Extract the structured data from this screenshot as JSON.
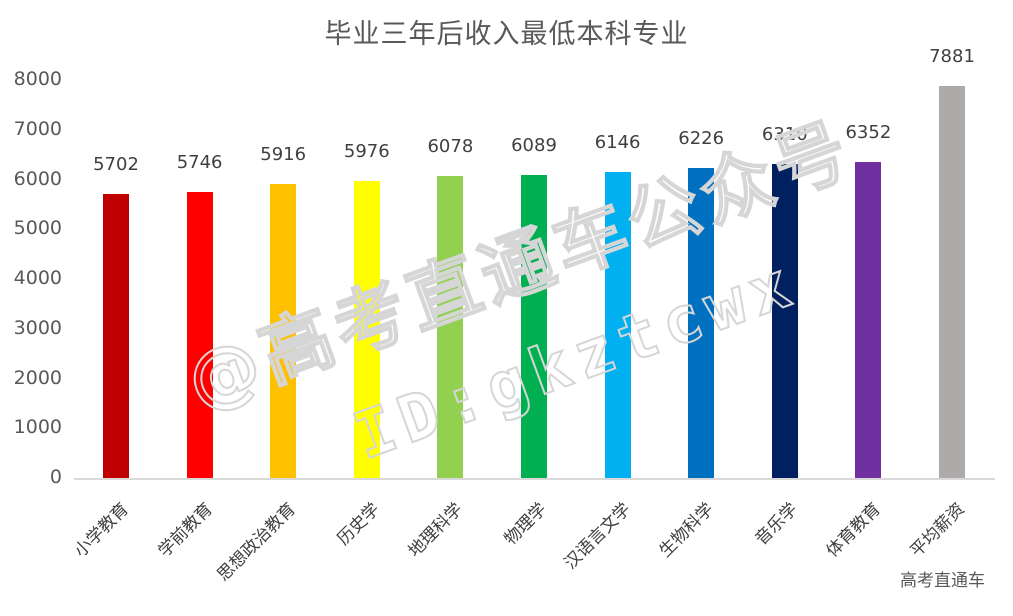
{
  "chart_data": {
    "type": "bar",
    "title": "毕业三年后收入最低本科专业",
    "xlabel": "",
    "ylabel": "",
    "ylim": [
      0,
      8000
    ],
    "yticks": [
      0,
      1000,
      2000,
      3000,
      4000,
      5000,
      6000,
      7000,
      8000
    ],
    "grid": false,
    "legend": "none",
    "categories": [
      "小学教育",
      "学前教育",
      "思想政治教育",
      "历史学",
      "地理科学",
      "物理学",
      "汉语言文学",
      "生物科学",
      "音乐学",
      "体育教育",
      "平均薪资"
    ],
    "values": [
      5702,
      5746,
      5916,
      5976,
      6078,
      6089,
      6146,
      6226,
      6310,
      6352,
      7881
    ],
    "colors": [
      "#C00000",
      "#FF0000",
      "#FFC000",
      "#FFFF00",
      "#92D050",
      "#00B050",
      "#00B0F0",
      "#0070C0",
      "#002060",
      "#7030A0",
      "#AEAAAA"
    ],
    "data_labels": [
      "5702",
      "5746",
      "5916",
      "5976",
      "6078",
      "6089",
      "6146",
      "6226",
      "6310",
      "6352",
      "7881"
    ]
  },
  "title": "毕业三年后收入最低本科专业",
  "yticks": [
    "0",
    "1000",
    "2000",
    "3000",
    "4000",
    "5000",
    "6000",
    "7000",
    "8000"
  ],
  "watermark": {
    "line1": "@高考直通车公众号",
    "line2": "ID:gkztcwx"
  },
  "credit": "高考直通车"
}
